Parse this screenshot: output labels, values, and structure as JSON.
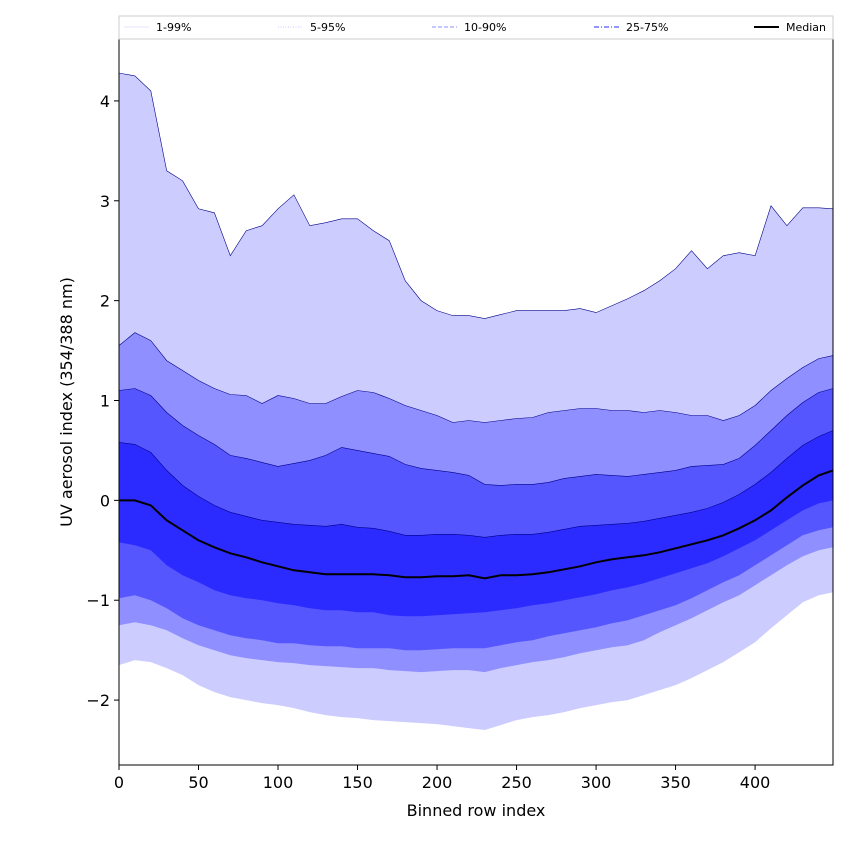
{
  "chart_data": {
    "type": "area",
    "title": "",
    "xlabel": "Binned row index",
    "ylabel": "UV aerosol index (354/388 nm)",
    "xlim": [
      0,
      449
    ],
    "ylim": [
      -2.65,
      4.62
    ],
    "xticks": [
      0,
      50,
      100,
      150,
      200,
      250,
      300,
      350,
      400
    ],
    "yticks": [
      -2,
      -1,
      0,
      1,
      2,
      3,
      4
    ],
    "ytick_labels": [
      "−2",
      "−1",
      "0",
      "1",
      "2",
      "3",
      "4"
    ],
    "grid": false,
    "legend_position": "top",
    "colors": {
      "band_1_99": "#ccccff",
      "band_5_95": "#8f8fff",
      "band_10_90": "#5656ff",
      "band_25_75": "#2b2bff",
      "upper_edge": "#00008b",
      "median": "#000000"
    },
    "legend": [
      {
        "label": "1-99%",
        "style": "solid",
        "color": "#ccccff"
      },
      {
        "label": "5-95%",
        "style": "dotted",
        "color": "#8f8fff"
      },
      {
        "label": "10-90%",
        "style": "dashed",
        "color": "#8f8fff"
      },
      {
        "label": "25-75%",
        "style": "dashdot",
        "color": "#5656ff"
      },
      {
        "label": "Median",
        "style": "solid",
        "color": "#000000"
      }
    ],
    "x": [
      0,
      10,
      20,
      30,
      40,
      50,
      60,
      70,
      80,
      90,
      100,
      110,
      120,
      130,
      140,
      150,
      160,
      170,
      180,
      190,
      200,
      210,
      220,
      230,
      240,
      250,
      260,
      270,
      280,
      290,
      300,
      310,
      320,
      330,
      340,
      350,
      360,
      370,
      380,
      390,
      400,
      410,
      420,
      430,
      440,
      449
    ],
    "series": [
      {
        "name": "1-99%",
        "kind": "band",
        "lower": [
          -1.65,
          -1.6,
          -1.62,
          -1.68,
          -1.75,
          -1.85,
          -1.92,
          -1.97,
          -2.0,
          -2.03,
          -2.05,
          -2.08,
          -2.12,
          -2.15,
          -2.17,
          -2.18,
          -2.2,
          -2.21,
          -2.22,
          -2.23,
          -2.24,
          -2.26,
          -2.28,
          -2.3,
          -2.25,
          -2.2,
          -2.17,
          -2.15,
          -2.12,
          -2.08,
          -2.05,
          -2.02,
          -2.0,
          -1.95,
          -1.9,
          -1.85,
          -1.78,
          -1.7,
          -1.62,
          -1.52,
          -1.42,
          -1.28,
          -1.15,
          -1.02,
          -0.95,
          -0.92
        ],
        "upper": [
          4.28,
          4.25,
          4.1,
          3.3,
          3.2,
          2.92,
          2.88,
          2.45,
          2.7,
          2.75,
          2.92,
          3.06,
          2.75,
          2.78,
          2.82,
          2.82,
          2.7,
          2.6,
          2.2,
          2.0,
          1.9,
          1.85,
          1.85,
          1.82,
          1.86,
          1.9,
          1.9,
          1.9,
          1.9,
          1.92,
          1.88,
          1.95,
          2.02,
          2.1,
          2.2,
          2.32,
          2.5,
          2.32,
          2.45,
          2.48,
          2.45,
          2.95,
          2.75,
          2.93,
          2.93,
          2.92
        ]
      },
      {
        "name": "5-95%",
        "kind": "band",
        "lower": [
          -1.25,
          -1.22,
          -1.25,
          -1.3,
          -1.38,
          -1.45,
          -1.5,
          -1.55,
          -1.58,
          -1.6,
          -1.62,
          -1.63,
          -1.65,
          -1.66,
          -1.67,
          -1.68,
          -1.68,
          -1.7,
          -1.71,
          -1.72,
          -1.71,
          -1.7,
          -1.7,
          -1.72,
          -1.68,
          -1.65,
          -1.62,
          -1.6,
          -1.57,
          -1.53,
          -1.5,
          -1.47,
          -1.45,
          -1.4,
          -1.32,
          -1.25,
          -1.18,
          -1.1,
          -1.02,
          -0.95,
          -0.85,
          -0.75,
          -0.65,
          -0.56,
          -0.5,
          -0.47
        ],
        "upper": [
          1.55,
          1.68,
          1.6,
          1.4,
          1.3,
          1.2,
          1.12,
          1.06,
          1.05,
          0.97,
          1.05,
          1.02,
          0.97,
          0.97,
          1.04,
          1.1,
          1.08,
          1.02,
          0.95,
          0.9,
          0.85,
          0.78,
          0.8,
          0.78,
          0.8,
          0.82,
          0.83,
          0.88,
          0.9,
          0.92,
          0.92,
          0.9,
          0.9,
          0.88,
          0.9,
          0.88,
          0.85,
          0.85,
          0.8,
          0.85,
          0.95,
          1.1,
          1.22,
          1.33,
          1.42,
          1.45
        ]
      },
      {
        "name": "10-90%",
        "kind": "band",
        "lower": [
          -0.98,
          -0.95,
          -1.0,
          -1.08,
          -1.18,
          -1.25,
          -1.3,
          -1.35,
          -1.38,
          -1.4,
          -1.43,
          -1.43,
          -1.45,
          -1.46,
          -1.46,
          -1.48,
          -1.48,
          -1.48,
          -1.5,
          -1.5,
          -1.49,
          -1.48,
          -1.48,
          -1.48,
          -1.45,
          -1.42,
          -1.4,
          -1.36,
          -1.33,
          -1.3,
          -1.27,
          -1.23,
          -1.2,
          -1.15,
          -1.1,
          -1.05,
          -0.98,
          -0.9,
          -0.82,
          -0.75,
          -0.65,
          -0.55,
          -0.45,
          -0.35,
          -0.3,
          -0.27
        ],
        "upper": [
          1.1,
          1.12,
          1.05,
          0.88,
          0.75,
          0.65,
          0.56,
          0.45,
          0.42,
          0.38,
          0.34,
          0.37,
          0.4,
          0.45,
          0.53,
          0.5,
          0.47,
          0.44,
          0.36,
          0.32,
          0.3,
          0.28,
          0.25,
          0.16,
          0.15,
          0.16,
          0.16,
          0.18,
          0.22,
          0.24,
          0.26,
          0.25,
          0.24,
          0.26,
          0.28,
          0.3,
          0.34,
          0.35,
          0.36,
          0.42,
          0.55,
          0.7,
          0.85,
          0.98,
          1.08,
          1.12
        ]
      },
      {
        "name": "25-75%",
        "kind": "band",
        "lower": [
          -0.42,
          -0.45,
          -0.5,
          -0.65,
          -0.75,
          -0.82,
          -0.9,
          -0.95,
          -0.98,
          -1.0,
          -1.03,
          -1.05,
          -1.08,
          -1.1,
          -1.1,
          -1.12,
          -1.12,
          -1.15,
          -1.16,
          -1.16,
          -1.15,
          -1.14,
          -1.13,
          -1.12,
          -1.1,
          -1.08,
          -1.05,
          -1.03,
          -1.0,
          -0.97,
          -0.94,
          -0.9,
          -0.87,
          -0.83,
          -0.78,
          -0.73,
          -0.68,
          -0.63,
          -0.56,
          -0.48,
          -0.4,
          -0.3,
          -0.2,
          -0.1,
          -0.03,
          0.0
        ],
        "upper": [
          0.58,
          0.56,
          0.48,
          0.3,
          0.15,
          0.04,
          -0.05,
          -0.12,
          -0.16,
          -0.2,
          -0.22,
          -0.24,
          -0.25,
          -0.26,
          -0.24,
          -0.27,
          -0.28,
          -0.31,
          -0.35,
          -0.35,
          -0.34,
          -0.34,
          -0.35,
          -0.37,
          -0.35,
          -0.34,
          -0.34,
          -0.32,
          -0.29,
          -0.26,
          -0.25,
          -0.24,
          -0.23,
          -0.21,
          -0.18,
          -0.15,
          -0.12,
          -0.08,
          -0.02,
          0.06,
          0.16,
          0.28,
          0.42,
          0.55,
          0.64,
          0.7
        ]
      },
      {
        "name": "Median",
        "kind": "line",
        "values": [
          0.0,
          0.0,
          -0.05,
          -0.2,
          -0.3,
          -0.4,
          -0.47,
          -0.53,
          -0.57,
          -0.62,
          -0.66,
          -0.7,
          -0.72,
          -0.74,
          -0.74,
          -0.74,
          -0.74,
          -0.75,
          -0.77,
          -0.77,
          -0.76,
          -0.76,
          -0.75,
          -0.78,
          -0.75,
          -0.75,
          -0.74,
          -0.72,
          -0.69,
          -0.66,
          -0.62,
          -0.59,
          -0.57,
          -0.55,
          -0.52,
          -0.48,
          -0.44,
          -0.4,
          -0.35,
          -0.28,
          -0.2,
          -0.1,
          0.03,
          0.15,
          0.25,
          0.3
        ]
      }
    ]
  }
}
